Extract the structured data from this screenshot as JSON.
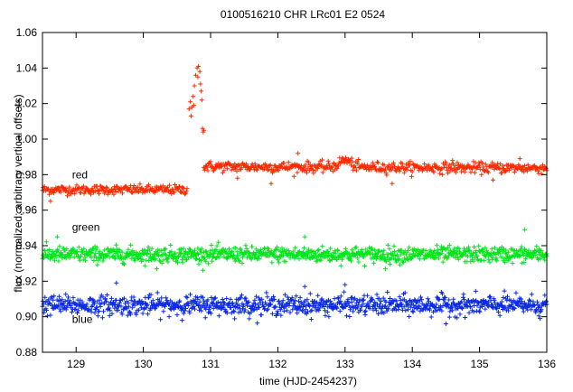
{
  "chart_data": {
    "type": "scatter",
    "title": "0100516210 CHR LRc01 E2 0524",
    "xlabel": "time (HJD-2454237)",
    "ylabel": "flux (normalized; arbitrary vertical offsets)",
    "xlim": [
      128.5,
      136.0
    ],
    "ylim": [
      0.88,
      1.06
    ],
    "xticks": [
      "129",
      "130",
      "131",
      "132",
      "133",
      "134",
      "135",
      "136"
    ],
    "yticks": [
      "0.88",
      "0.90",
      "0.92",
      "0.94",
      "0.96",
      "0.98",
      "1.00",
      "1.02",
      "1.04",
      "1.06"
    ],
    "marker": "plus",
    "grid": false,
    "legend": "inline labels",
    "series": [
      {
        "name": "red",
        "label_pos": {
          "x": 128.94,
          "y": 0.978
        },
        "color": "#ff2a00",
        "segments": [
          {
            "x_start": 128.5,
            "x_end": 130.65,
            "level": 0.9715,
            "noise": 0.0013,
            "step": 0.01
          },
          {
            "x_start": 130.9,
            "x_end": 136.0,
            "level": 0.9845,
            "trend": -0.0008,
            "noise": 0.0015,
            "step": 0.01
          }
        ],
        "flare": [
          {
            "x": 130.68,
            "y": 1.017
          },
          {
            "x": 130.7,
            "y": 1.021
          },
          {
            "x": 130.72,
            "y": 1.018
          },
          {
            "x": 130.74,
            "y": 1.024
          },
          {
            "x": 130.76,
            "y": 1.03
          },
          {
            "x": 130.78,
            "y": 1.036
          },
          {
            "x": 130.8,
            "y": 1.04
          },
          {
            "x": 130.82,
            "y": 1.041
          },
          {
            "x": 130.84,
            "y": 1.038
          },
          {
            "x": 130.86,
            "y": 1.027
          },
          {
            "x": 130.88,
            "y": 1.006
          },
          {
            "x": 130.9,
            "y": 1.005
          },
          {
            "x": 130.71,
            "y": 1.013
          },
          {
            "x": 130.75,
            "y": 1.019
          },
          {
            "x": 130.81,
            "y": 1.035
          },
          {
            "x": 130.85,
            "y": 1.031
          },
          {
            "x": 130.87,
            "y": 1.022
          },
          {
            "x": 130.89,
            "y": 1.004
          }
        ],
        "bump": {
          "x": 133.0,
          "amplitude": 0.004,
          "width": 0.12
        },
        "outliers": [
          {
            "x": 128.62,
            "y": 0.965
          },
          {
            "x": 131.9,
            "y": 0.975
          },
          {
            "x": 131.4,
            "y": 0.978
          },
          {
            "x": 132.3,
            "y": 0.992
          },
          {
            "x": 133.7,
            "y": 0.975
          },
          {
            "x": 135.2,
            "y": 0.977
          },
          {
            "x": 135.6,
            "y": 0.989
          },
          {
            "x": 134.6,
            "y": 0.988
          }
        ]
      },
      {
        "name": "green",
        "label_pos": {
          "x": 128.94,
          "y": 0.9485
        },
        "color": "#00e61a",
        "segments": [
          {
            "x_start": 128.5,
            "x_end": 136.0,
            "level": 0.935,
            "noise": 0.0022,
            "step": 0.0075
          }
        ],
        "outliers": [
          {
            "x": 128.72,
            "y": 0.945
          },
          {
            "x": 135.67,
            "y": 0.949
          },
          {
            "x": 132.4,
            "y": 0.945
          },
          {
            "x": 133.6,
            "y": 0.927
          },
          {
            "x": 130.2,
            "y": 0.927
          }
        ]
      },
      {
        "name": "blue",
        "label_pos": {
          "x": 128.94,
          "y": 0.8965
        },
        "color": "#0a2ae6",
        "segments": [
          {
            "x_start": 128.5,
            "x_end": 136.0,
            "level": 0.9065,
            "noise": 0.0027,
            "step": 0.0075
          }
        ],
        "outliers": [
          {
            "x": 129.6,
            "y": 0.919
          },
          {
            "x": 132.4,
            "y": 0.917
          },
          {
            "x": 134.5,
            "y": 0.896
          },
          {
            "x": 135.9,
            "y": 0.899
          },
          {
            "x": 133.0,
            "y": 0.918
          }
        ]
      }
    ]
  }
}
